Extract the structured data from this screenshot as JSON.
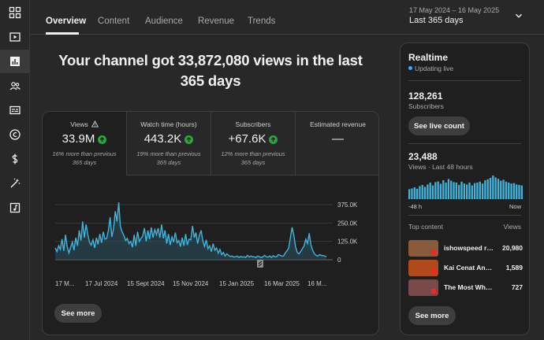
{
  "sidebar": {
    "items": [
      {
        "icon": "dashboard-icon"
      },
      {
        "icon": "content-icon"
      },
      {
        "icon": "analytics-icon",
        "active": true
      },
      {
        "icon": "community-icon"
      },
      {
        "icon": "subtitles-icon"
      },
      {
        "icon": "copyright-icon"
      },
      {
        "icon": "earn-icon"
      },
      {
        "icon": "customisation-icon"
      },
      {
        "icon": "audio-library-icon"
      }
    ]
  },
  "header": {
    "tabs": [
      {
        "label": "Overview",
        "active": true
      },
      {
        "label": "Content"
      },
      {
        "label": "Audience"
      },
      {
        "label": "Revenue"
      },
      {
        "label": "Trends"
      }
    ],
    "date_range": "17 May 2024 – 16 May 2025",
    "range_label": "Last 365 days"
  },
  "headline": "Your channel got 33,872,080 views in the last 365 days",
  "metrics": [
    {
      "label": "Views",
      "value": "33.9M",
      "note": "16% more than previous 365 days",
      "trend": "up",
      "warning": true
    },
    {
      "label": "Watch time (hours)",
      "value": "443.2K",
      "note": "19% more than previous 365 days",
      "trend": "up"
    },
    {
      "label": "Subscribers",
      "value": "+67.6K",
      "note": "12% more than previous 365 days",
      "trend": "up"
    },
    {
      "label": "Estimated revenue",
      "value": "—",
      "note": ""
    }
  ],
  "chart_data": {
    "type": "area",
    "series": [
      {
        "values": [
          80000,
          55000,
          95000,
          70000,
          140000,
          60000,
          170000,
          90000,
          45000,
          85000,
          120000,
          65000,
          150000,
          95000,
          200000,
          130000,
          260000,
          150000,
          240000,
          170000,
          120000,
          100000,
          135000,
          80000,
          150000,
          105000,
          175000,
          115000,
          190000,
          140000,
          145000,
          200000,
          290000,
          155000,
          210000,
          330000,
          260000,
          390000,
          225000,
          190000,
          165000,
          130000,
          145000,
          110000,
          125000,
          85000,
          170000,
          95000,
          190000,
          125000,
          145000,
          160000,
          215000,
          125000,
          200000,
          140000,
          220000,
          150000,
          205000,
          170000,
          215000,
          150000,
          240000,
          145000,
          200000,
          110000,
          175000,
          100000,
          155000,
          120000,
          185000,
          115000,
          130000,
          90000,
          150000,
          95000,
          175000,
          100000,
          140000,
          135000,
          230000,
          150000,
          185000,
          110000,
          165000,
          200000,
          130000,
          90000,
          135000,
          75000,
          95000,
          55000,
          110000,
          65000,
          80000,
          45000,
          70000,
          35000,
          50000,
          25000,
          40000,
          30000,
          22000,
          25000,
          18000,
          20000,
          25000,
          15000,
          22000,
          18000,
          20000,
          15000,
          30000,
          18000,
          25000,
          20000,
          20000,
          15000,
          25000,
          20000,
          15000,
          20000,
          30000,
          20000,
          18000,
          25000,
          15000,
          28000,
          20000,
          20000,
          35000,
          30000,
          25000,
          25000,
          45000,
          60000,
          80000,
          150000,
          220000,
          170000,
          90000,
          50000,
          40000,
          55000,
          75000,
          95000,
          140000,
          110000,
          180000,
          100000,
          65000,
          40000,
          30000,
          25000,
          35000,
          30000,
          28000,
          25000,
          20000
        ]
      }
    ],
    "ylim": [
      0,
      375000
    ],
    "yticks": [
      "375.0K",
      "250.0K",
      "125.0K",
      "0"
    ],
    "xticks": [
      "17 M...",
      "17 Jul 2024",
      "15 Sept 2024",
      "15 Nov 2024",
      "15 Jan 2025",
      "16 Mar 2025",
      "16 M..."
    ],
    "grid": true
  },
  "main": {
    "see_more": "See more"
  },
  "realtime": {
    "title": "Realtime",
    "status": "Updating live",
    "subscribers": {
      "value": "128,261",
      "label": "Subscribers",
      "button": "See live count"
    },
    "views": {
      "value": "23,488",
      "label": "Views · Last 48 hours"
    },
    "bars": [
      0.42,
      0.45,
      0.5,
      0.44,
      0.55,
      0.6,
      0.52,
      0.62,
      0.7,
      0.58,
      0.72,
      0.75,
      0.65,
      0.8,
      0.7,
      0.85,
      0.78,
      0.72,
      0.7,
      0.6,
      0.74,
      0.66,
      0.62,
      0.7,
      0.58,
      0.68,
      0.7,
      0.74,
      0.66,
      0.8,
      0.84,
      0.9,
      1.0,
      0.92,
      0.86,
      0.78,
      0.82,
      0.74,
      0.7,
      0.66,
      0.68,
      0.62,
      0.6,
      0.58
    ],
    "axis_start": "-48 h",
    "axis_end": "Now",
    "top_content_label": "Top content",
    "views_col": "Views",
    "top_content": [
      {
        "title": "ishowspeed re...",
        "views": "20,980",
        "thumb_color": "#8a5a3a"
      },
      {
        "title": "Kai Cenat And ...",
        "views": "1,589",
        "thumb_color": "#b04a1a"
      },
      {
        "title": "The Most Wholes...",
        "views": "727",
        "thumb_color": "#7a4a4a"
      }
    ],
    "see_more": "See more"
  }
}
